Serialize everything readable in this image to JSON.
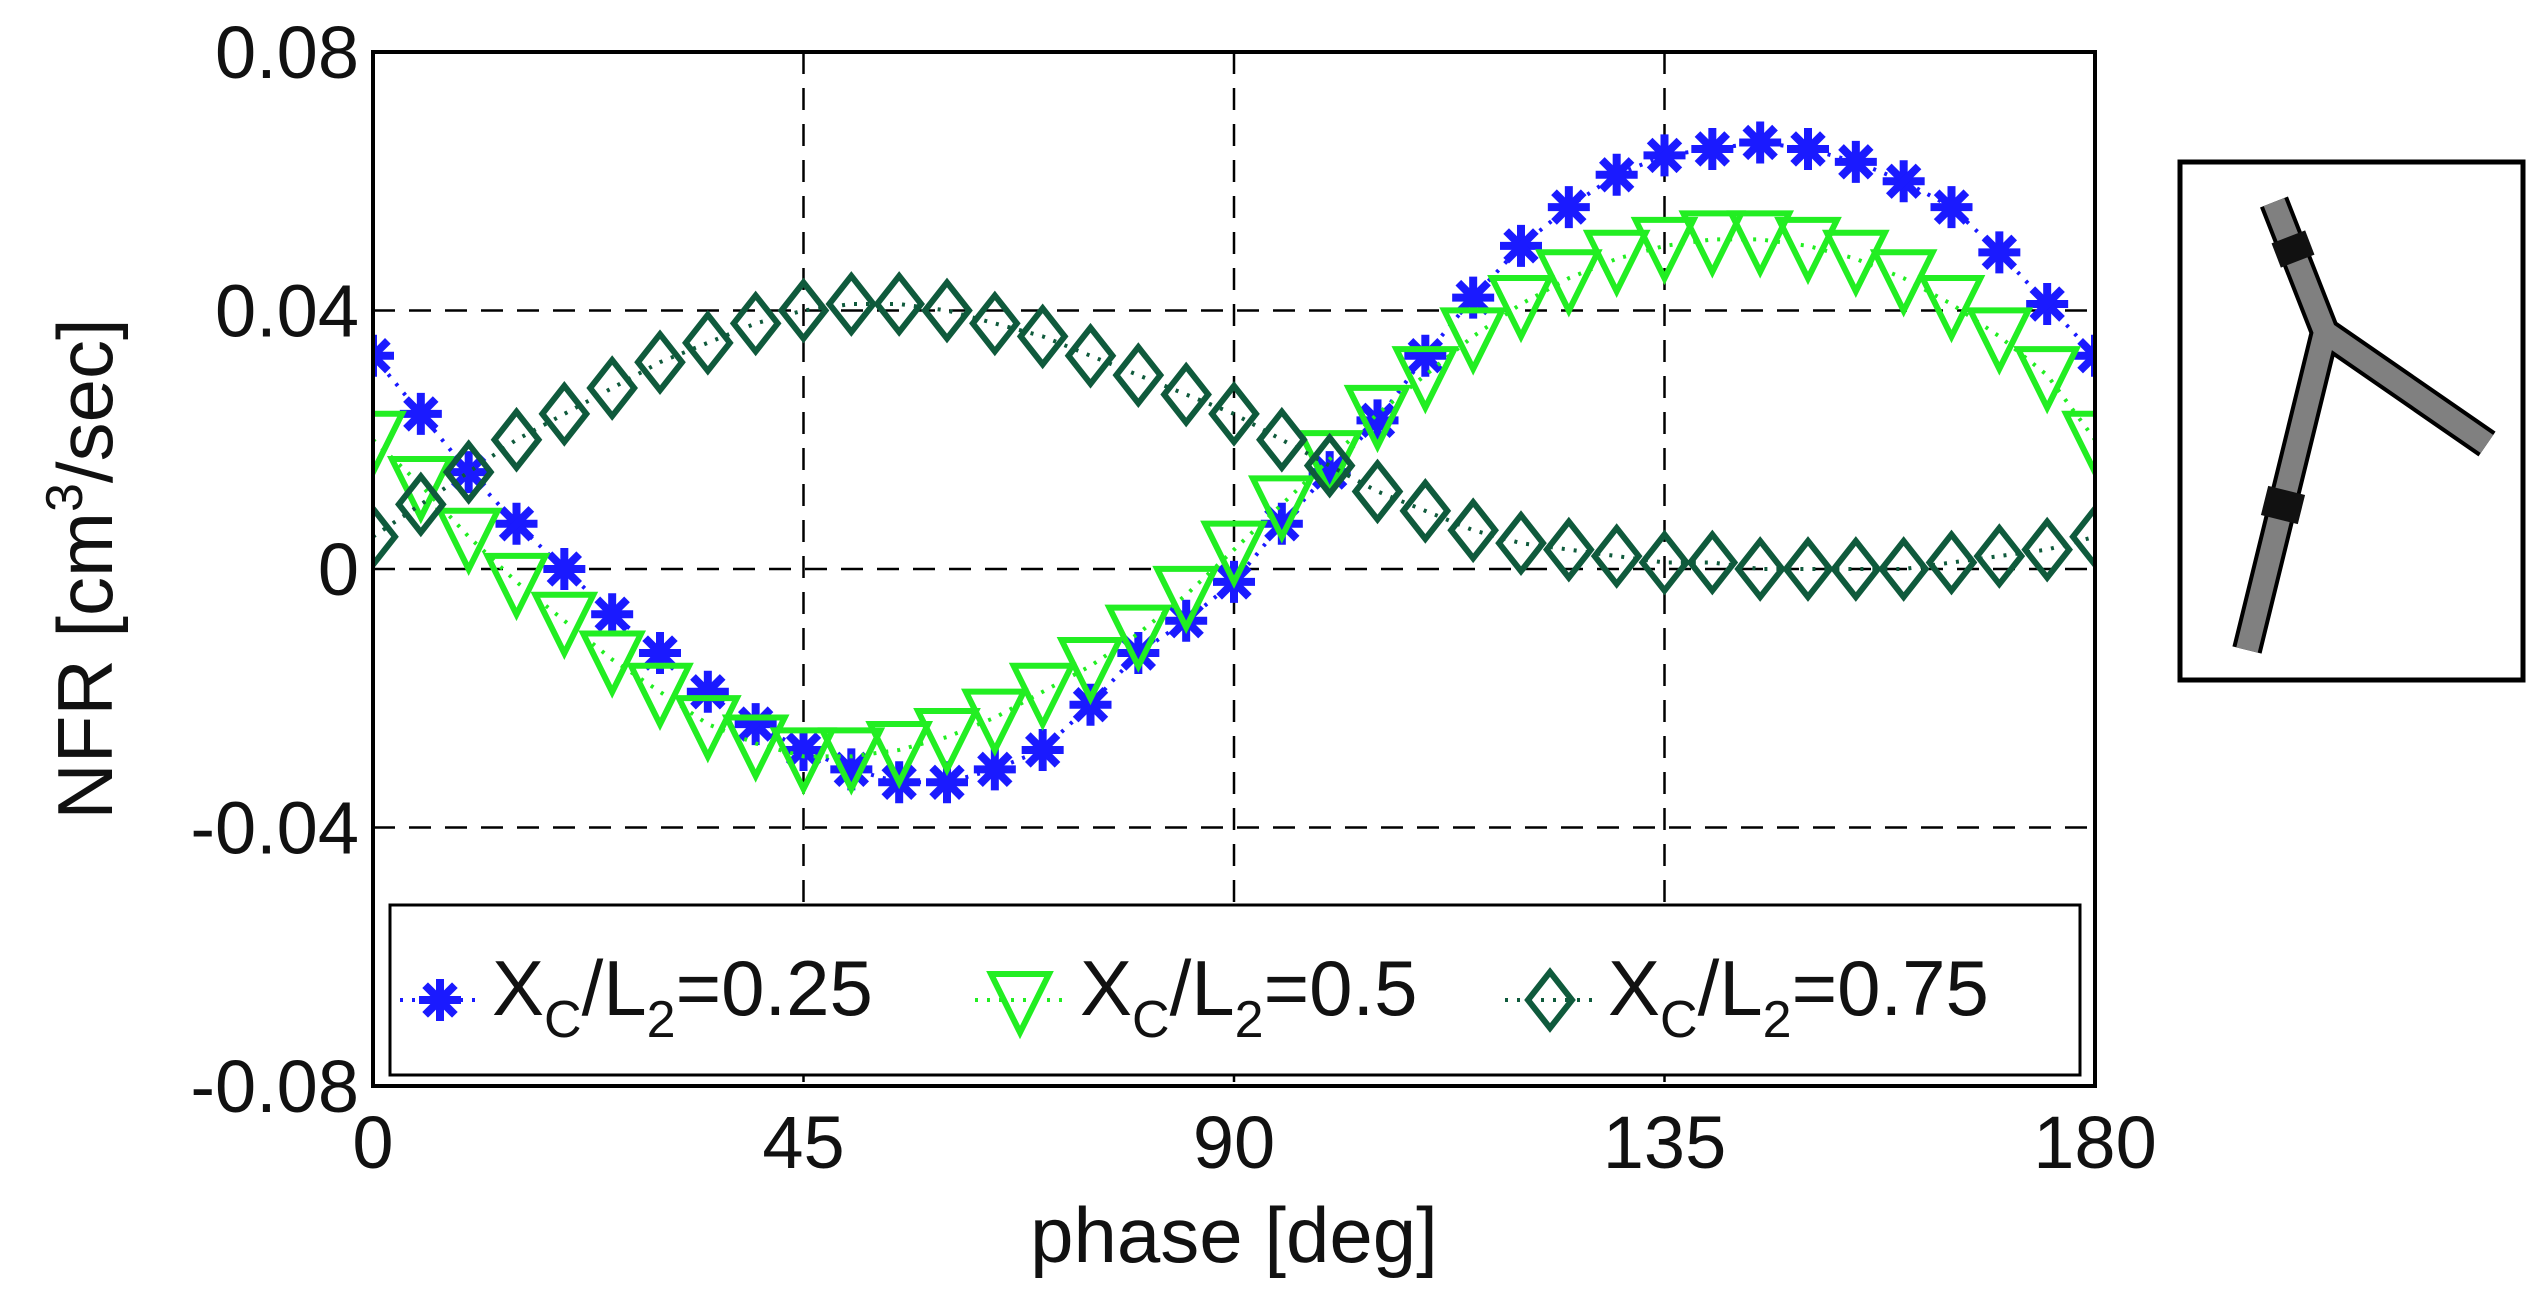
{
  "colors": {
    "series1": "#1a1aff",
    "series2": "#22ee22",
    "series3": "#0f5a3c",
    "inset_pipe": "#808080"
  },
  "chart_data": {
    "type": "scatter",
    "title": "",
    "xlabel": "phase [deg]",
    "ylabel_parts": {
      "prefix": "NFR [cm",
      "sup": "3",
      "suffix": "/sec]"
    },
    "xlim": [
      0,
      180
    ],
    "ylim": [
      -0.08,
      0.08
    ],
    "grid": true,
    "legend_position": "bottom",
    "x_ticks": [
      0,
      45,
      90,
      135,
      180
    ],
    "x_tick_labels": [
      "0",
      "45",
      "90",
      "135",
      "180"
    ],
    "y_ticks": [
      -0.08,
      -0.04,
      0,
      0.04,
      0.08
    ],
    "y_tick_labels": [
      "-0.08",
      "-0.04",
      "0",
      "0.04",
      "0.08"
    ],
    "x": [
      0,
      5,
      10,
      15,
      20,
      25,
      30,
      35,
      40,
      45,
      50,
      55,
      60,
      65,
      70,
      75,
      80,
      85,
      90,
      95,
      100,
      105,
      110,
      115,
      120,
      125,
      130,
      135,
      140,
      145,
      150,
      155,
      160,
      165,
      170,
      175,
      180
    ],
    "series": [
      {
        "name": "XC/L2=0.25",
        "label_parts": {
          "a": "X",
          "a_sub": "C",
          "b": "/L",
          "b_sub": "2",
          "c": "=0.25"
        },
        "marker": "asterisk",
        "values": [
          0.033,
          0.024,
          0.015,
          0.007,
          0.0,
          -0.007,
          -0.013,
          -0.019,
          -0.024,
          -0.028,
          -0.031,
          -0.033,
          -0.033,
          -0.031,
          -0.028,
          -0.021,
          -0.013,
          -0.008,
          -0.002,
          0.007,
          0.015,
          0.023,
          0.033,
          0.042,
          0.05,
          0.056,
          0.061,
          0.064,
          0.065,
          0.066,
          0.065,
          0.063,
          0.06,
          0.056,
          0.049,
          0.041,
          0.033
        ]
      },
      {
        "name": "XC/L2=0.5",
        "label_parts": {
          "a": "X",
          "a_sub": "C",
          "b": "/L",
          "b_sub": "2",
          "c": "=0.5"
        },
        "marker": "triangle-down",
        "values": [
          0.02,
          0.013,
          0.005,
          -0.002,
          -0.008,
          -0.014,
          -0.019,
          -0.024,
          -0.027,
          -0.029,
          -0.029,
          -0.028,
          -0.026,
          -0.023,
          -0.019,
          -0.015,
          -0.01,
          -0.004,
          0.003,
          0.01,
          0.017,
          0.024,
          0.03,
          0.036,
          0.041,
          0.045,
          0.048,
          0.05,
          0.051,
          0.051,
          0.05,
          0.048,
          0.045,
          0.041,
          0.036,
          0.03,
          0.02
        ]
      },
      {
        "name": "XC/L2=0.75",
        "label_parts": {
          "a": "X",
          "a_sub": "C",
          "b": "/L",
          "b_sub": "2",
          "c": "=0.75"
        },
        "marker": "diamond",
        "values": [
          0.005,
          0.01,
          0.015,
          0.02,
          0.024,
          0.028,
          0.032,
          0.035,
          0.038,
          0.04,
          0.041,
          0.041,
          0.04,
          0.038,
          0.036,
          0.033,
          0.03,
          0.027,
          0.024,
          0.02,
          0.016,
          0.012,
          0.009,
          0.006,
          0.004,
          0.003,
          0.002,
          0.001,
          0.001,
          0.0,
          0.0,
          0.0,
          0.0,
          0.001,
          0.002,
          0.003,
          0.005
        ]
      }
    ]
  }
}
